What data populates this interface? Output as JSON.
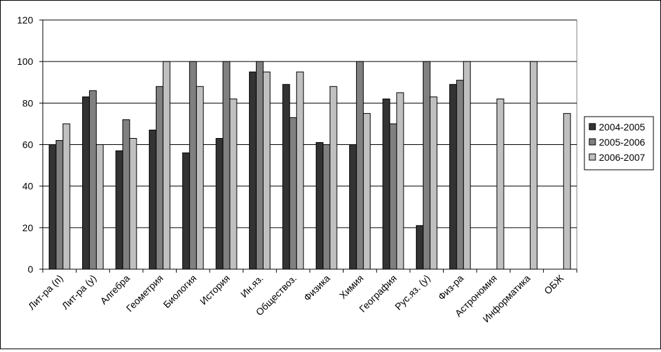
{
  "chart_data": {
    "type": "bar",
    "title": "",
    "xlabel": "",
    "ylabel": "",
    "ylim": [
      0,
      120
    ],
    "yticks": [
      0,
      20,
      40,
      60,
      80,
      100,
      120
    ],
    "grid": "horizontal",
    "legend_position": "right",
    "categories": [
      "Лит-ра (п)",
      "Лит-ра (у)",
      "Алгебра",
      "Геометрия",
      "Биология",
      "История",
      "Ин.яз.",
      "Обществоз.",
      "Физика",
      "Химия",
      "География",
      "Рус.яз. (у)",
      "Физ-ра",
      "Астрономия",
      "Информатика",
      "ОБЖ"
    ],
    "series": [
      {
        "name": "2004-2005",
        "color": "#333333",
        "values": [
          60,
          83,
          57,
          67,
          56,
          63,
          95,
          89,
          61,
          60,
          82,
          21,
          89,
          null,
          null,
          null
        ]
      },
      {
        "name": "2005-2006",
        "color": "#808080",
        "values": [
          62,
          86,
          72,
          88,
          100,
          100,
          100,
          73,
          60,
          100,
          70,
          100,
          91,
          null,
          null,
          null
        ]
      },
      {
        "name": "2006-2007",
        "color": "#c0c0c0",
        "values": [
          70,
          60,
          63,
          100,
          88,
          82,
          95,
          95,
          88,
          75,
          85,
          83,
          100,
          82,
          100,
          75
        ]
      }
    ]
  }
}
